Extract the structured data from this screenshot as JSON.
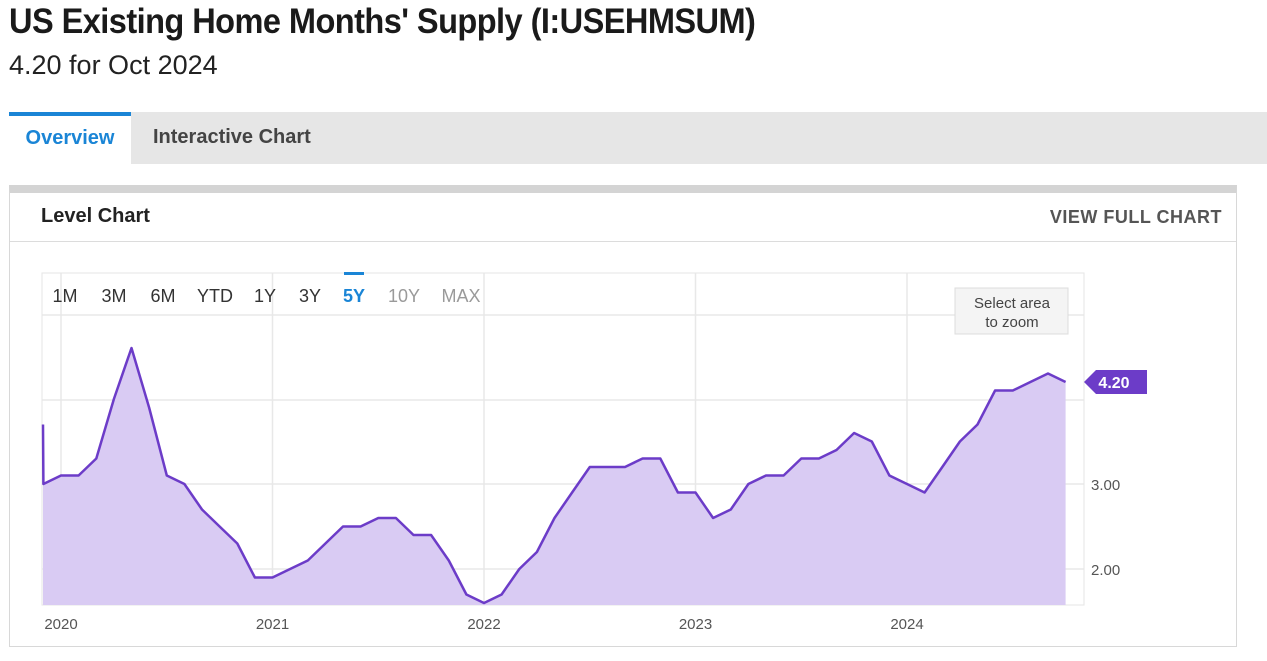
{
  "header": {
    "title": "US Existing Home Months' Supply (I:USEHMSUM)",
    "subtitle": "4.20 for Oct 2024"
  },
  "tabs": [
    {
      "label": "Overview",
      "active": true
    },
    {
      "label": "Interactive Chart",
      "active": false
    }
  ],
  "card": {
    "title": "Level Chart",
    "full_chart_link": "VIEW FULL CHART"
  },
  "range_buttons": [
    {
      "label": "1M",
      "state": "enabled"
    },
    {
      "label": "3M",
      "state": "enabled"
    },
    {
      "label": "6M",
      "state": "enabled"
    },
    {
      "label": "YTD",
      "state": "enabled"
    },
    {
      "label": "1Y",
      "state": "enabled"
    },
    {
      "label": "3Y",
      "state": "enabled"
    },
    {
      "label": "5Y",
      "state": "active"
    },
    {
      "label": "10Y",
      "state": "disabled"
    },
    {
      "label": "MAX",
      "state": "disabled"
    }
  ],
  "zoom_hint": [
    "Select area",
    "to zoom"
  ],
  "colors": {
    "accent": "#1a85d6",
    "series_line": "#6c3cc8",
    "series_fill": "#d9cbf3",
    "disabled": "#9a9a9a"
  },
  "chart_data": {
    "type": "area",
    "title": "Level Chart",
    "x_tick_labels": [
      "2020",
      "2021",
      "2022",
      "2023",
      "2024"
    ],
    "y_tick_labels": [
      "2.00",
      "3.00"
    ],
    "ylim": [
      1.58,
      5.5
    ],
    "current_value_label": "4.20",
    "series": [
      {
        "x": [
          "2019-11",
          "2019-12",
          "2020-01",
          "2020-02",
          "2020-03",
          "2020-04",
          "2020-05",
          "2020-06",
          "2020-07",
          "2020-08",
          "2020-09",
          "2020-10",
          "2020-11",
          "2020-12",
          "2021-01",
          "2021-02",
          "2021-03",
          "2021-04",
          "2021-05",
          "2021-06",
          "2021-07",
          "2021-08",
          "2021-09",
          "2021-10",
          "2021-11",
          "2021-12",
          "2022-01",
          "2022-02",
          "2022-03",
          "2022-04",
          "2022-05",
          "2022-06",
          "2022-07",
          "2022-08",
          "2022-09",
          "2022-10",
          "2022-11",
          "2022-12",
          "2023-01",
          "2023-02",
          "2023-03",
          "2023-04",
          "2023-05",
          "2023-06",
          "2023-07",
          "2023-08",
          "2023-09",
          "2023-10",
          "2023-11",
          "2023-12",
          "2024-01",
          "2024-02",
          "2024-03",
          "2024-04",
          "2024-05",
          "2024-06",
          "2024-07",
          "2024-08",
          "2024-09",
          "2024-10"
        ],
        "values": [
          3.7,
          3.0,
          3.1,
          3.1,
          3.3,
          4.0,
          4.6,
          3.9,
          3.1,
          3.0,
          2.7,
          2.5,
          2.3,
          1.9,
          1.9,
          2.0,
          2.1,
          2.3,
          2.5,
          2.5,
          2.6,
          2.6,
          2.4,
          2.4,
          2.1,
          1.7,
          1.6,
          1.7,
          2.0,
          2.2,
          2.6,
          2.9,
          3.2,
          3.2,
          3.2,
          3.3,
          3.3,
          2.9,
          2.9,
          2.6,
          2.7,
          3.0,
          3.1,
          3.1,
          3.3,
          3.3,
          3.4,
          3.6,
          3.5,
          3.1,
          3.0,
          2.9,
          3.2,
          3.5,
          3.7,
          4.1,
          4.1,
          4.2,
          4.3,
          4.2
        ]
      }
    ]
  }
}
